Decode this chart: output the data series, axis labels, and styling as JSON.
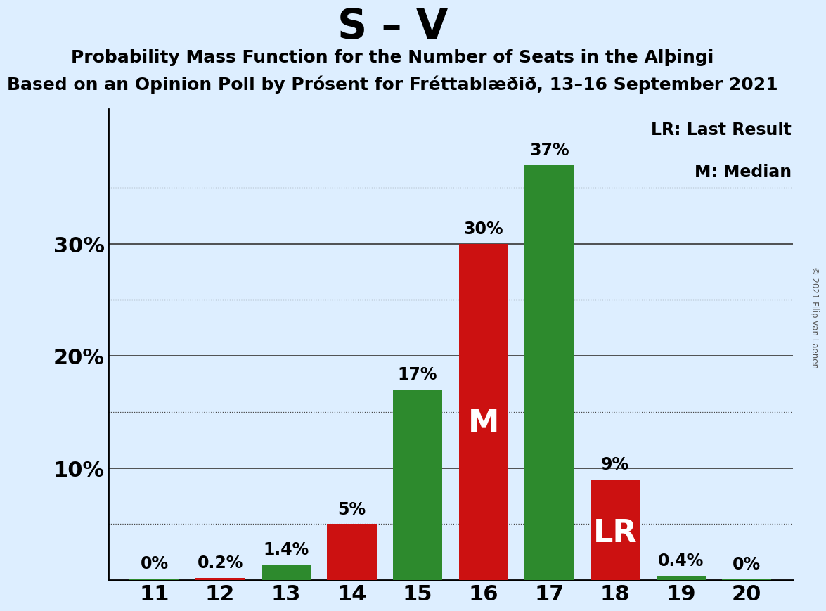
{
  "title_main": "S – V",
  "subtitle1": "Probability Mass Function for the Number of Seats in the Alþingi",
  "subtitle2": "Based on an Opinion Poll by Prósent for Fréttablæðið, 13–16 September 2021",
  "copyright": "© 2021 Filip van Laenen",
  "seats": [
    11,
    12,
    13,
    14,
    15,
    16,
    17,
    18,
    19,
    20
  ],
  "pmf_values": [
    0.12,
    0.0,
    1.4,
    0.0,
    17.0,
    0.0,
    37.0,
    0.0,
    0.4,
    0.1
  ],
  "lr_values": [
    0.0,
    0.2,
    0.0,
    5.0,
    0.0,
    30.0,
    0.0,
    9.0,
    0.0,
    0.0
  ],
  "bar_labels": [
    "0%",
    "0.2%",
    "1.4%",
    "5%",
    "17%",
    "30%",
    "37%",
    "9%",
    "0.4%",
    "0%"
  ],
  "pmf_color": "#2d8a2d",
  "lr_color": "#cc1111",
  "background_color": "#ddeeff",
  "ylim_max": 42,
  "solid_gridlines": [
    10,
    20,
    30
  ],
  "dotted_gridlines": [
    5,
    15,
    25,
    35
  ],
  "ytick_positions": [
    10,
    20,
    30
  ],
  "ytick_labels": [
    "10%",
    "20%",
    "30%"
  ],
  "legend_lr": "LR: Last Result",
  "legend_m": "M: Median",
  "median_label_seat": 16,
  "lr_label_seat": 18,
  "bar_width": 0.75
}
